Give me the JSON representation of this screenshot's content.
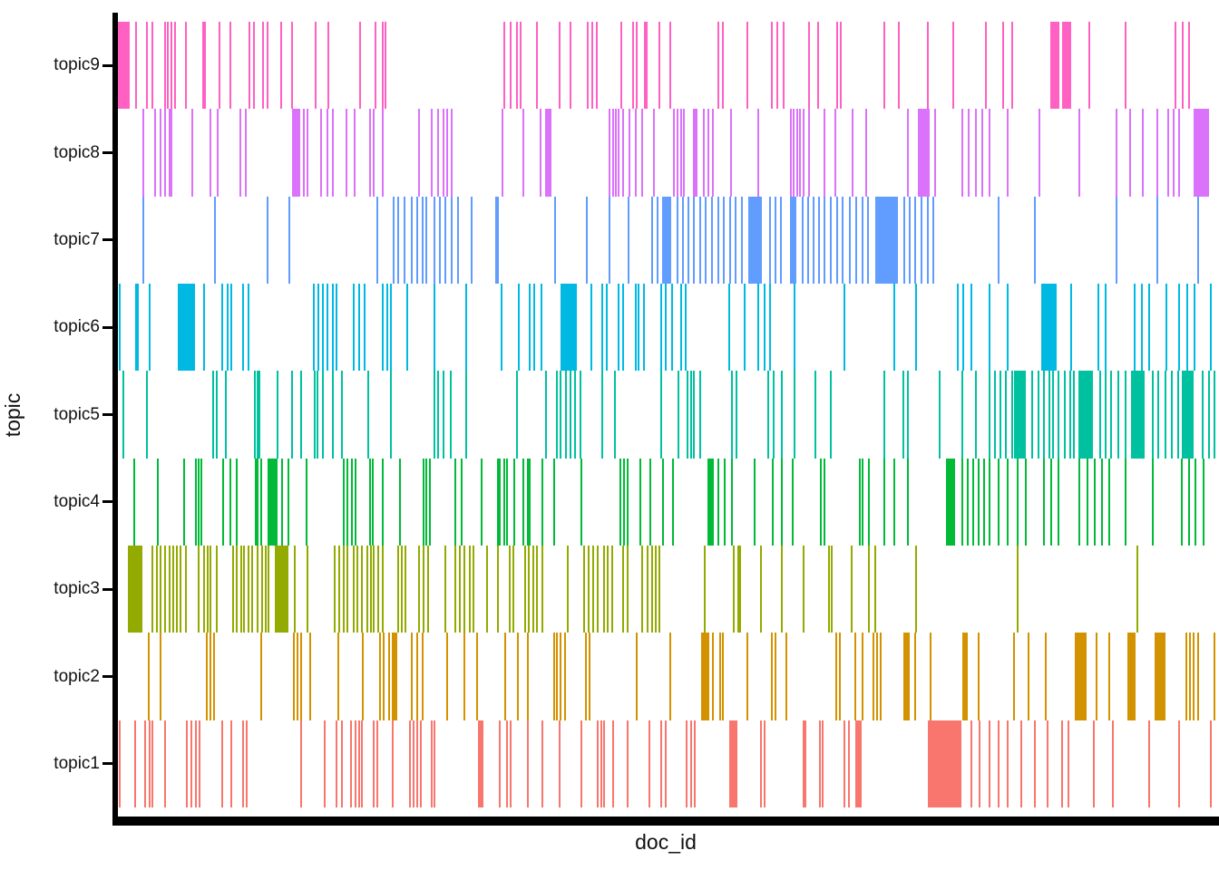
{
  "figure": {
    "background": "#FFFFFF",
    "axis_color": "#000000"
  },
  "chart_data": {
    "type": "rug",
    "title": "",
    "xlabel": "doc_id",
    "ylabel": "topic",
    "x_domain": [
      0,
      1000
    ],
    "x_tick_labels": [],
    "grid": false,
    "legend": "none",
    "categories": [
      "topic1",
      "topic2",
      "topic3",
      "topic4",
      "topic5",
      "topic6",
      "topic7",
      "topic8",
      "topic9"
    ],
    "series": [
      {
        "name": "topic1",
        "color": "#F8766D",
        "ticks": [
          1,
          15,
          24,
          28,
          31,
          42,
          62,
          66,
          70,
          74,
          94,
          103,
          113,
          117,
          166,
          188,
          199,
          204,
          212,
          216,
          219,
          222,
          233,
          236,
          250,
          266,
          269,
          272,
          276,
          286,
          288,
          348,
          354,
          358,
          373,
          387,
          402,
          422,
          437,
          440,
          443,
          451,
          464,
          484,
          495,
          499,
          518,
          522,
          526,
          586,
          589,
          625,
          627,
          640,
          642,
          662,
          666,
          673,
          778,
          786,
          795,
          803,
          811,
          824,
          836,
          848,
          861,
          867,
          890,
          907,
          940,
          968,
          997
        ],
        "bands": [
          [
            329,
            334
          ],
          [
            558,
            565
          ],
          [
            675,
            679
          ],
          [
            739,
            770
          ]
        ]
      },
      {
        "name": "topic2",
        "color": "#D39200",
        "ticks": [
          27,
          38,
          80,
          84,
          87,
          130,
          160,
          163,
          166,
          175,
          200,
          223,
          238,
          242,
          247,
          267,
          272,
          277,
          300,
          315,
          327,
          353,
          364,
          373,
          397,
          400,
          403,
          407,
          426,
          430,
          473,
          503,
          542,
          549,
          551,
          574,
          596,
          599,
          609,
          655,
          658,
          672,
          679,
          689,
          692,
          695,
          727,
          741,
          785,
          817,
          830,
          846,
          892,
          904,
          974,
          978,
          981,
          985,
          1000
        ],
        "bands": [
          [
            250,
            255
          ],
          [
            532,
            540
          ],
          [
            717,
            723
          ],
          [
            771,
            776
          ],
          [
            873,
            884
          ],
          [
            921,
            929
          ],
          [
            946,
            956
          ]
        ]
      },
      {
        "name": "topic3",
        "color": "#93AA00",
        "ticks": [
          31,
          35,
          38,
          42,
          46,
          50,
          53,
          56,
          61,
          73,
          78,
          81,
          84,
          89,
          104,
          108,
          112,
          114,
          118,
          122,
          127,
          131,
          134,
          137,
          161,
          172,
          197,
          201,
          205,
          209,
          214,
          218,
          222,
          227,
          230,
          233,
          237,
          241,
          255,
          258,
          262,
          274,
          278,
          282,
          298,
          307,
          311,
          315,
          320,
          324,
          336,
          346,
          357,
          360,
          371,
          374,
          378,
          382,
          387,
          410,
          425,
          429,
          433,
          437,
          443,
          446,
          450,
          460,
          464,
          478,
          483,
          487,
          490,
          493,
          535,
          561,
          565,
          567,
          586,
          605,
          625,
          648,
          651,
          669,
          685,
          690,
          728,
          820,
          930
        ],
        "bands": [
          [
            9,
            22
          ],
          [
            143,
            156
          ]
        ]
      },
      {
        "name": "topic4",
        "color": "#00BA38",
        "ticks": [
          14,
          36,
          60,
          70,
          73,
          75,
          95,
          102,
          108,
          125,
          127,
          130,
          149,
          155,
          171,
          205,
          209,
          213,
          216,
          229,
          232,
          241,
          257,
          278,
          281,
          284,
          307,
          313,
          331,
          346,
          348,
          352,
          354,
          361,
          369,
          373,
          375,
          387,
          397,
          422,
          458,
          461,
          464,
          476,
          485,
          497,
          506,
          547,
          553,
          560,
          580,
          597,
          605,
          615,
          641,
          644,
          676,
          679,
          685,
          699,
          708,
          720,
          770,
          775,
          780,
          785,
          790,
          795,
          803,
          811,
          820,
          828,
          844,
          851,
          858,
          877,
          884,
          891,
          897,
          904,
          919,
          944,
          970,
          977,
          983,
          990
        ],
        "bands": [
          [
            137,
            146
          ],
          [
            538,
            544
          ],
          [
            756,
            764
          ]
        ]
      },
      {
        "name": "topic5",
        "color": "#00C19F",
        "ticks": [
          4,
          26,
          86,
          89,
          98,
          124,
          127,
          128,
          145,
          158,
          166,
          179,
          181,
          186,
          195,
          204,
          228,
          248,
          288,
          291,
          296,
          303,
          317,
          363,
          390,
          400,
          403,
          408,
          412,
          416,
          421,
          441,
          453,
          495,
          511,
          519,
          522,
          525,
          531,
          560,
          564,
          593,
          598,
          605,
          617,
          636,
          650,
          699,
          716,
          720,
          749,
          770,
          782,
          795,
          800,
          805,
          810,
          815,
          834,
          839,
          844,
          849,
          853,
          858,
          863,
          868,
          872,
          896,
          901,
          906,
          912,
          919,
          944,
          949,
          955,
          961,
          967,
          989,
          995,
          1000
        ],
        "bands": [
          [
            818,
            829
          ],
          [
            877,
            890
          ],
          [
            925,
            937
          ],
          [
            971,
            982
          ]
        ]
      },
      {
        "name": "topic6",
        "color": "#00B9E3",
        "ticks": [
          1,
          16,
          17,
          28,
          78,
          94,
          99,
          103,
          113,
          118,
          178,
          182,
          186,
          190,
          195,
          199,
          214,
          219,
          224,
          241,
          245,
          248,
          263,
          288,
          317,
          349,
          365,
          375,
          379,
          386,
          431,
          441,
          445,
          456,
          460,
          472,
          474,
          479,
          495,
          499,
          505,
          513,
          517,
          557,
          571,
          584,
          589,
          594,
          617,
          662,
          708,
          728,
          766,
          771,
          778,
          795,
          811,
          869,
          894,
          901,
          927,
          934,
          940,
          956,
          968,
          975,
          982,
          997
        ],
        "bands": [
          [
            55,
            70
          ],
          [
            404,
            419
          ],
          [
            843,
            857
          ]
        ]
      },
      {
        "name": "topic7",
        "color": "#619CFF",
        "ticks": [
          22,
          88,
          136,
          156,
          236,
          251,
          255,
          261,
          267,
          272,
          277,
          281,
          288,
          293,
          298,
          304,
          310,
          322,
          344,
          346,
          398,
          427,
          448,
          465,
          487,
          492,
          510,
          515,
          520,
          525,
          531,
          536,
          541,
          547,
          552,
          558,
          563,
          569,
          594,
          599,
          604,
          624,
          629,
          634,
          639,
          644,
          650,
          656,
          661,
          667,
          673,
          679,
          684,
          717,
          722,
          727,
          733,
          738,
          743,
          803,
          836,
          911,
          948,
          985
        ],
        "bands": [
          [
            497,
            505
          ],
          [
            575,
            588
          ],
          [
            613,
            619
          ],
          [
            691,
            712
          ]
        ]
      },
      {
        "name": "topic8",
        "color": "#DB72FB",
        "ticks": [
          22,
          33,
          38,
          42,
          46,
          48,
          67,
          84,
          90,
          111,
          116,
          169,
          172,
          185,
          190,
          195,
          208,
          215,
          229,
          233,
          241,
          274,
          286,
          291,
          296,
          300,
          304,
          350,
          369,
          385,
          448,
          451,
          454,
          456,
          460,
          466,
          472,
          478,
          488,
          507,
          510,
          513,
          516,
          534,
          538,
          542,
          559,
          584,
          613,
          616,
          619,
          622,
          625,
          630,
          644,
          654,
          670,
          682,
          720,
          745,
          770,
          776,
          782,
          788,
          795,
          811,
          840,
          877,
          911,
          923,
          935,
          948,
          958,
          963,
          968
        ],
        "bands": [
          [
            159,
            166
          ],
          [
            390,
            396
          ],
          [
            525,
            529
          ],
          [
            730,
            741
          ],
          [
            982,
            996
          ]
        ]
      },
      {
        "name": "topic9",
        "color": "#FF61C3",
        "ticks": [
          16,
          26,
          31,
          42,
          45,
          48,
          51,
          61,
          77,
          79,
          92,
          102,
          119,
          123,
          132,
          136,
          148,
          158,
          180,
          191,
          220,
          234,
          241,
          243,
          352,
          358,
          363,
          367,
          382,
          402,
          412,
          428,
          432,
          436,
          459,
          469,
          473,
          480,
          482,
          493,
          503,
          547,
          551,
          574,
          596,
          601,
          607,
          630,
          638,
          656,
          659,
          699,
          712,
          738,
          762,
          791,
          807,
          815,
          886,
          919,
          964,
          971,
          977
        ],
        "bands": [
          [
            0,
            11
          ],
          [
            851,
            859
          ],
          [
            862,
            870
          ]
        ]
      }
    ]
  }
}
